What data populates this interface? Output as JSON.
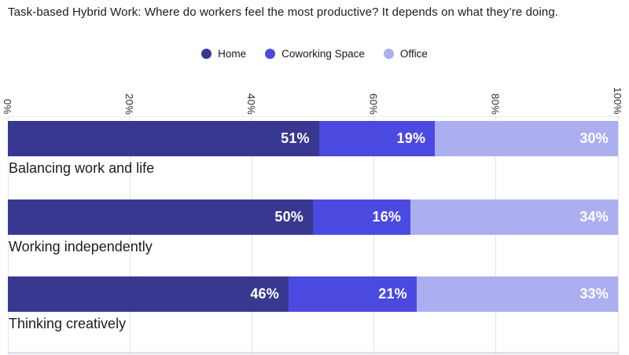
{
  "title": "Task-based Hybrid Work: Where do workers feel the most productive? It depends on what they’re doing.",
  "legend": [
    {
      "label": "Home",
      "color": "#393891"
    },
    {
      "label": "Coworking Space",
      "color": "#4b4ae0"
    },
    {
      "label": "Office",
      "color": "#abaff0"
    }
  ],
  "axis": {
    "ticks": [
      "0%",
      "20%",
      "40%",
      "60%",
      "80%",
      "100%"
    ],
    "min": 0,
    "max": 100,
    "grid": true,
    "tick_rotation_deg": 90
  },
  "chart_data": {
    "type": "bar",
    "orientation": "horizontal",
    "stacked": true,
    "title": "Task-based Hybrid Work: Where do workers feel the most productive? It depends on what they’re doing.",
    "categories": [
      "Balancing work and life",
      "Working independently",
      "Thinking creatively"
    ],
    "series": [
      {
        "name": "Home",
        "color": "#393891",
        "values": [
          51,
          50,
          46
        ]
      },
      {
        "name": "Coworking Space",
        "color": "#4b4ae0",
        "values": [
          19,
          16,
          21
        ]
      },
      {
        "name": "Office",
        "color": "#abaff0",
        "values": [
          30,
          34,
          33
        ]
      }
    ],
    "value_suffix": "%",
    "xlim": [
      0,
      100
    ],
    "legend_position": "top-center",
    "value_labels": "inside-right-white-bold"
  }
}
